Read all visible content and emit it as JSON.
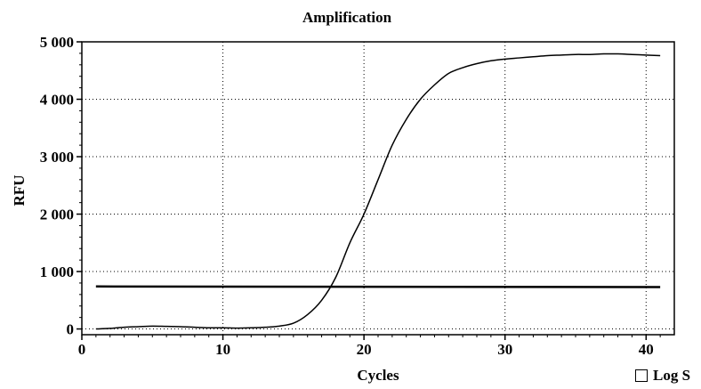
{
  "chart_data": {
    "type": "line",
    "title": "Amplification",
    "xlabel": "Cycles",
    "ylabel": "RFU",
    "xlim": [
      0,
      42
    ],
    "ylim": [
      -100,
      5000
    ],
    "x_ticks": [
      0,
      10,
      20,
      30,
      40
    ],
    "y_ticks": [
      0,
      1000,
      2000,
      3000,
      4000,
      5000
    ],
    "x_tick_labels": [
      "0",
      "10",
      "20",
      "30",
      "40"
    ],
    "y_tick_labels": [
      "0",
      "1 000",
      "2 000",
      "3 000",
      "4 000",
      "5 000"
    ],
    "grid": true,
    "series": [
      {
        "x": [
          1,
          2,
          3,
          4,
          5,
          6,
          7,
          8,
          9,
          10,
          11,
          12,
          13,
          14,
          15,
          16,
          17,
          18,
          19,
          20,
          21,
          22,
          23,
          24,
          25,
          26,
          27,
          28,
          29,
          30,
          31,
          32,
          33,
          34,
          35,
          36,
          37,
          38,
          39,
          40,
          41
        ],
        "values": [
          0,
          10,
          30,
          40,
          50,
          45,
          40,
          30,
          20,
          20,
          15,
          20,
          30,
          50,
          100,
          250,
          500,
          900,
          1500,
          2000,
          2600,
          3200,
          3650,
          4000,
          4250,
          4450,
          4550,
          4620,
          4670,
          4700,
          4720,
          4740,
          4760,
          4770,
          4780,
          4780,
          4790,
          4790,
          4780,
          4770,
          4760
        ]
      },
      {
        "x": [
          1,
          41
        ],
        "values": [
          740,
          730
        ]
      }
    ]
  },
  "controls": {
    "log_scale_label": "Log S"
  }
}
